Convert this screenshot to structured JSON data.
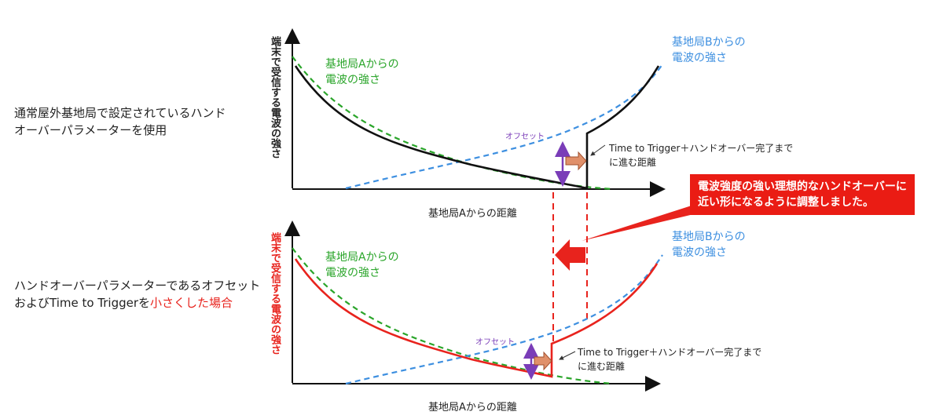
{
  "left_labels": {
    "top_line1": "通常屋外基地局で設定されているハンド",
    "top_line2": "オーバーパラメーターを使用",
    "bottom_line1": "ハンドオーバーパラメーターであるオフセット",
    "bottom_line2_prefix": "およびTime to Triggerを",
    "bottom_line2_highlight": "小さくした場合"
  },
  "top_chart": {
    "ylabel": "端末で受信する電波の強さ",
    "xlabel": "基地局Aからの距離",
    "signal_a_line1": "基地局Aからの",
    "signal_a_line2": "電波の強さ",
    "signal_b_line1": "基地局Bからの",
    "signal_b_line2": "電波の強さ",
    "offset_label": "オフセット",
    "ttt_line1": "Time to Trigger＋ハンドオーバー完了まで",
    "ttt_line2": "に進む距離"
  },
  "bottom_chart": {
    "ylabel": "端末で受信する電波の強さ",
    "xlabel": "基地局Aからの距離",
    "signal_a_line1": "基地局Aからの",
    "signal_a_line2": "電波の強さ",
    "signal_b_line1": "基地局Bからの",
    "signal_b_line2": "電波の強さ",
    "offset_label": "オフセット",
    "ttt_line1": "Time to Trigger＋ハンドオーバー完了まで",
    "ttt_line2": "に進む距離"
  },
  "callout": {
    "line1": "電波強度の強い理想的なハンドオーバーに",
    "line2": "近い形になるように調整しました。"
  },
  "colors": {
    "signal_a": "#2aa52a",
    "signal_b": "#3d8fe0",
    "received_default": "#111111",
    "received_adjusted": "#e8231d",
    "offset_arrow": "#7a3db8",
    "ttt_arrow": "#e0906a",
    "callout": "#ea1c14"
  }
}
